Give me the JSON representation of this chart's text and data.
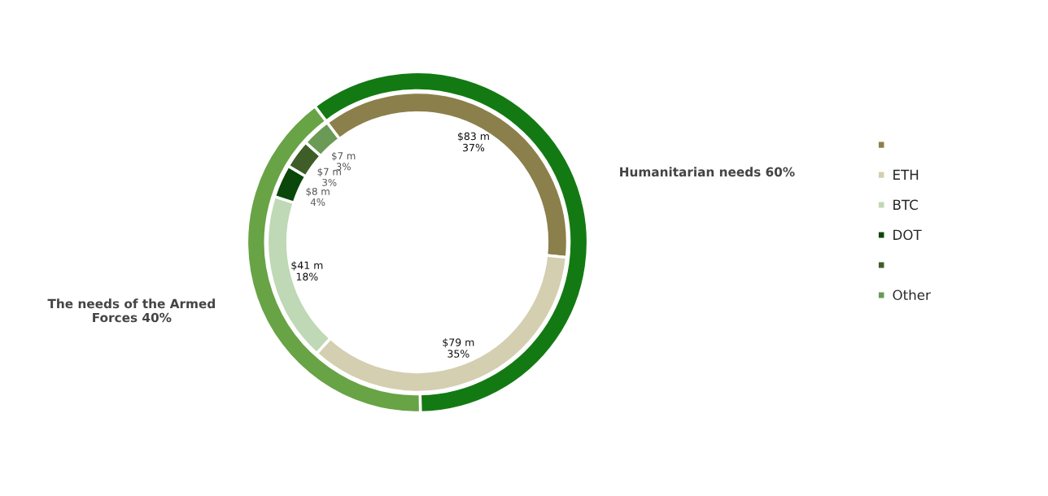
{
  "chart_data": {
    "type": "donut",
    "legend": "right",
    "categories": [
      null,
      "ETH",
      "BTC",
      "DOT",
      null,
      "Other",
      "Humanitarian needs 60%",
      "The needs of the Armed\nForces 40%"
    ],
    "series": [
      {
        "values": [
          null,
          null,
          null,
          null,
          null,
          null,
          60,
          40
        ],
        "colors": [
          null,
          null,
          null,
          null,
          null,
          null,
          "#137a13",
          "#68a345"
        ]
      },
      {
        "values": [
          83,
          79,
          41,
          8,
          7,
          7,
          null,
          null
        ],
        "colors": [
          "#8b7f4b",
          "#d3cfb0",
          "#bfd8b5",
          "#0b470b",
          "#3f5e27",
          "#6a9a55",
          null,
          null
        ],
        "value_labels": [
          "$83 m\n37%",
          "$79 m\n35%",
          "$41 m\n18%",
          "$8 m\n4%",
          "$7 m\n3%",
          "$7 m\n3%",
          null,
          null
        ]
      }
    ]
  }
}
